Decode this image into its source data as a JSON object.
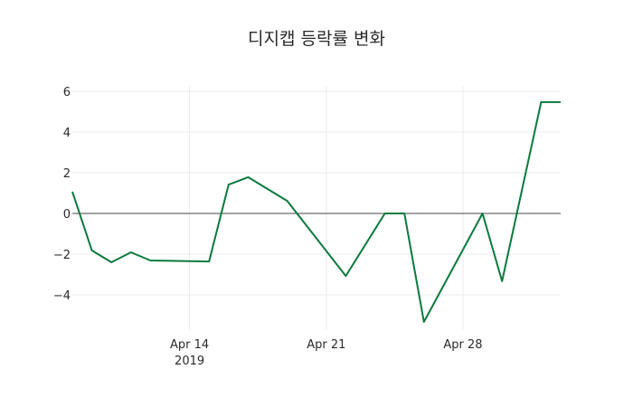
{
  "chart_data": {
    "type": "line",
    "title": "디지캡 등락률 변화",
    "xlabel": "",
    "ylabel": "",
    "x": [
      "2019-04-08",
      "2019-04-09",
      "2019-04-10",
      "2019-04-11",
      "2019-04-12",
      "2019-04-15",
      "2019-04-16",
      "2019-04-17",
      "2019-04-19",
      "2019-04-22",
      "2019-04-24",
      "2019-04-25",
      "2019-04-26",
      "2019-04-29",
      "2019-04-30",
      "2019-05-02",
      "2019-05-03"
    ],
    "series": [
      {
        "name": "등락률",
        "color": "#0b7a3e",
        "values": [
          1.07,
          -1.82,
          -2.4,
          -1.91,
          -2.31,
          -2.36,
          1.42,
          1.78,
          0.62,
          -3.07,
          0.0,
          0.0,
          -5.33,
          0.0,
          -3.33,
          5.47,
          5.47
        ]
      }
    ],
    "yticks": [
      6,
      4,
      2,
      0,
      -2,
      -4
    ],
    "ytick_labels": [
      "6",
      "4",
      "2",
      "0",
      "−2",
      "−4"
    ],
    "xticks": [
      "2019-04-14",
      "2019-04-21",
      "2019-04-28"
    ],
    "xtick_labels": [
      "Apr 14\n2019",
      "Apr 21",
      "Apr 28"
    ],
    "ylim": [
      -5.6,
      6.3
    ],
    "xlim": [
      "2019-04-08",
      "2019-05-03"
    ],
    "grid": true,
    "legend": false
  }
}
